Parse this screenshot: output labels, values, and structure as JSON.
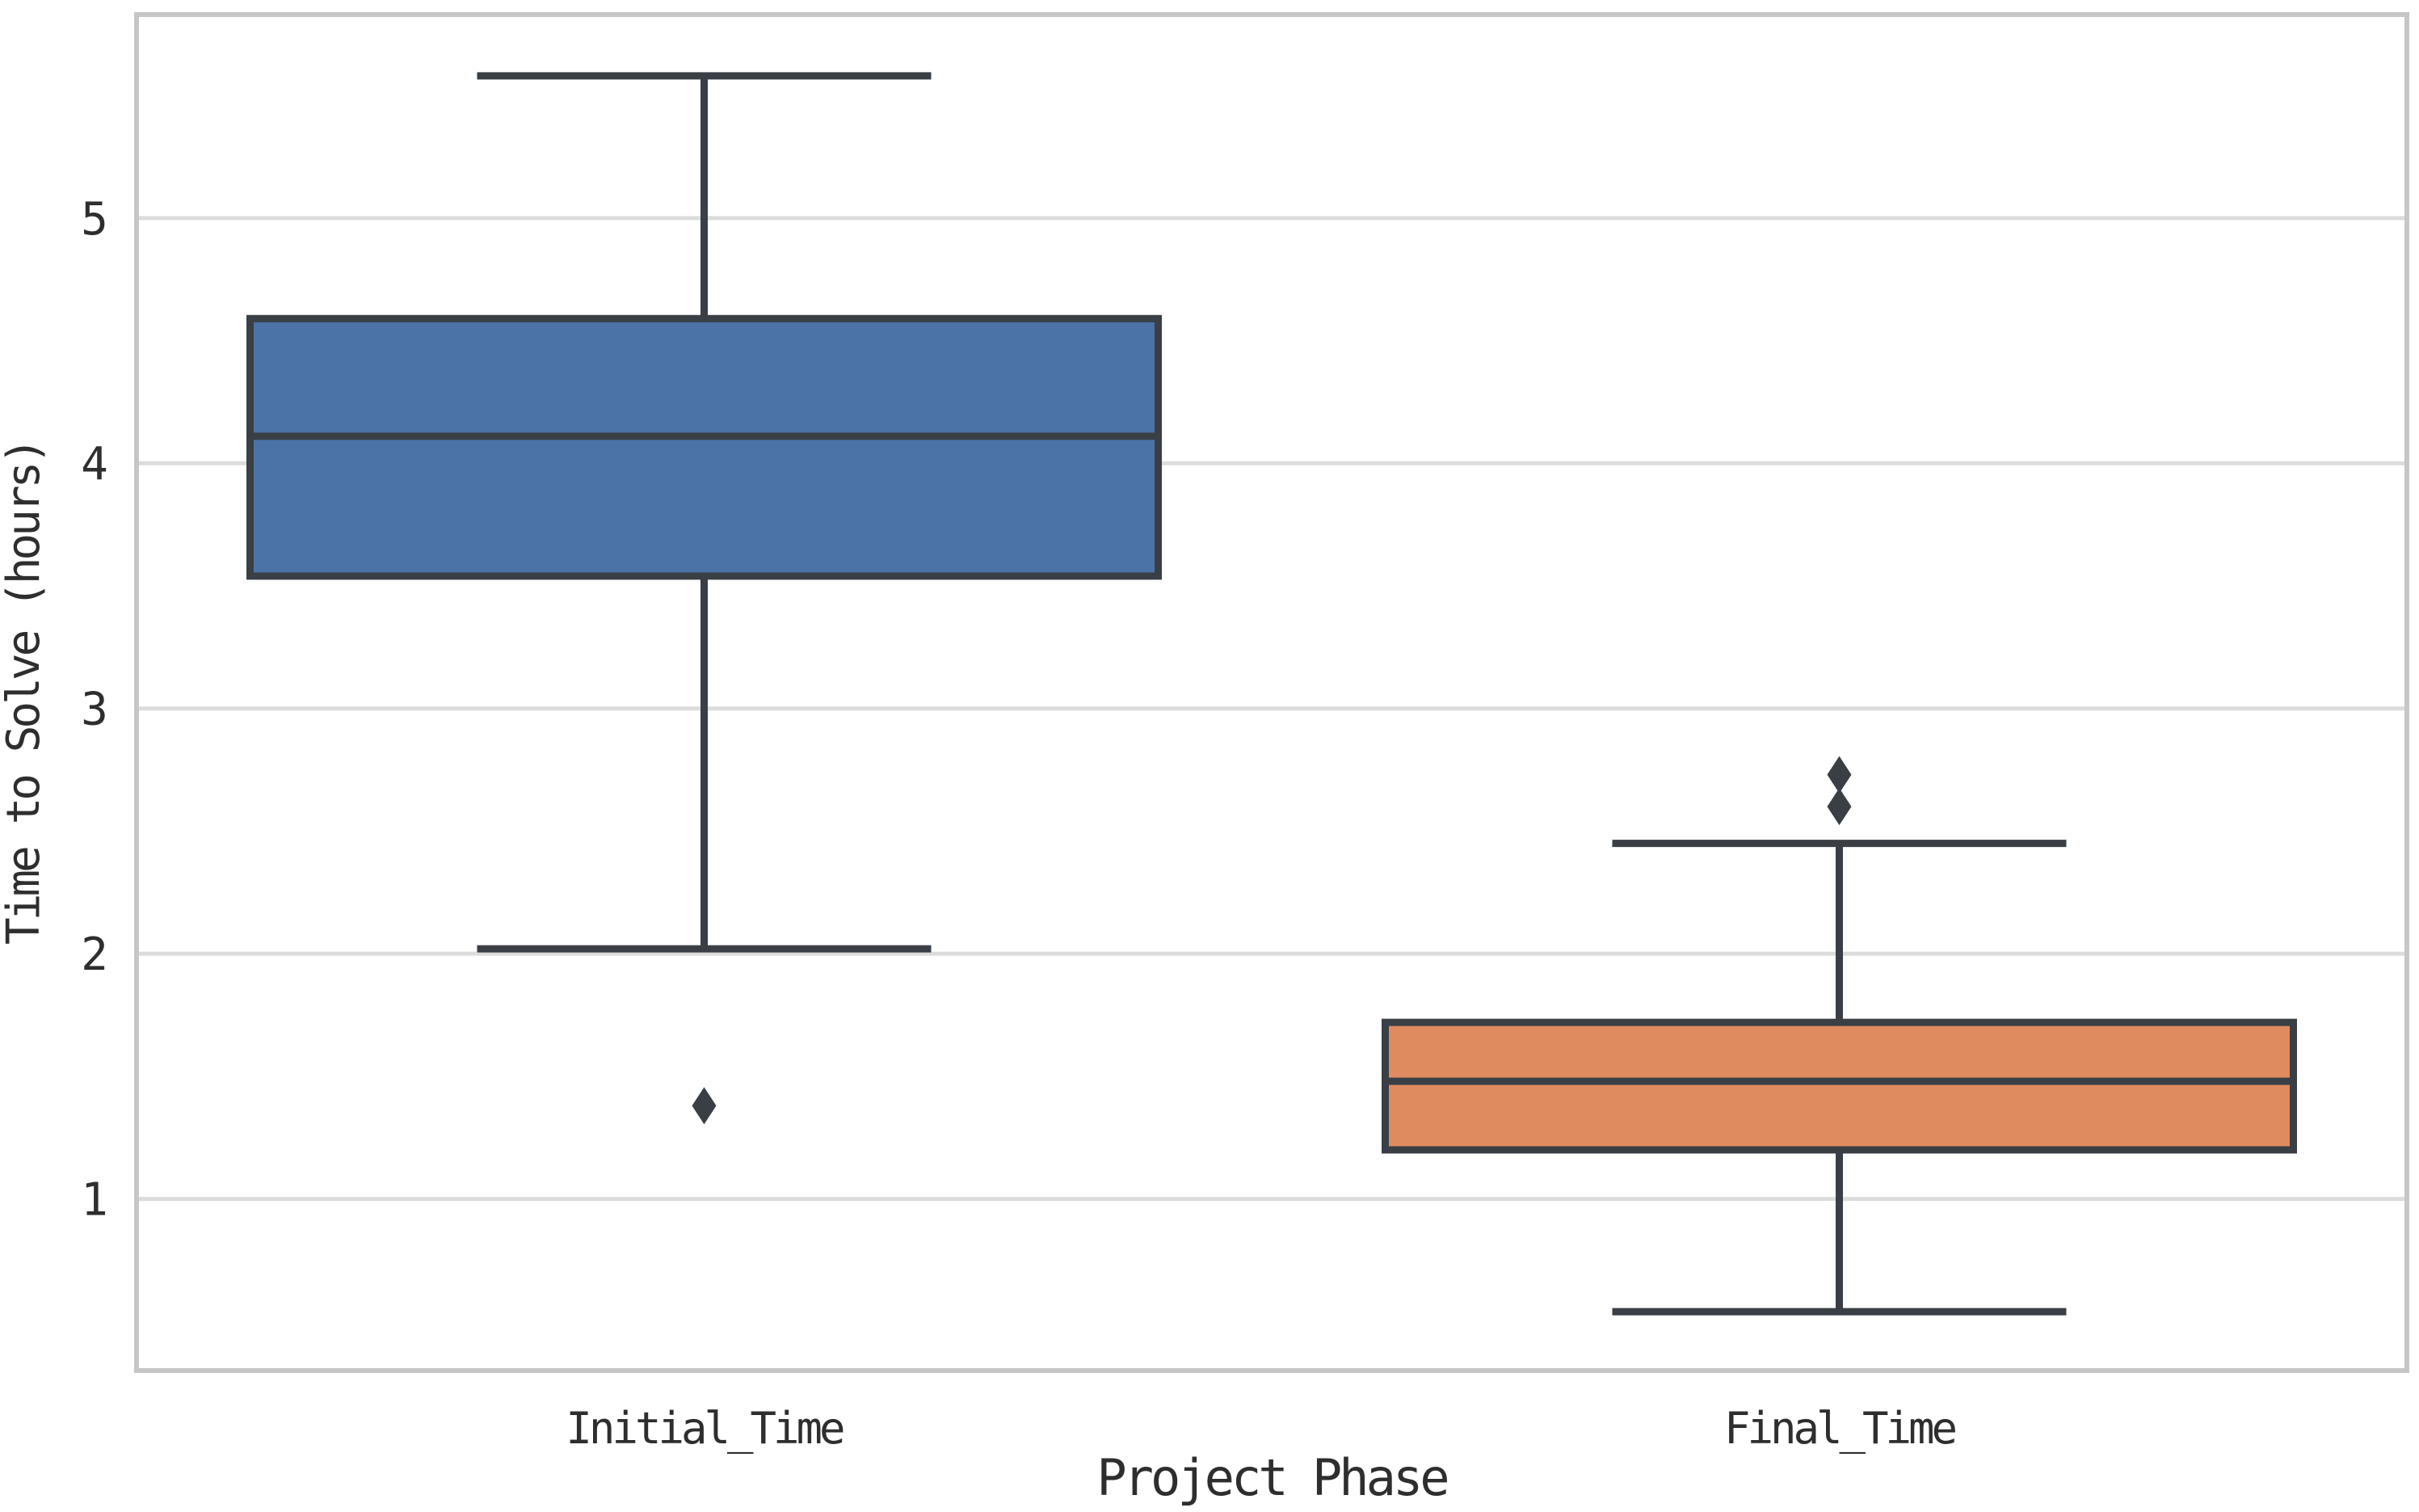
{
  "chart_data": {
    "type": "boxplot",
    "title": "",
    "xlabel": "Project Phase",
    "ylabel": "Time to Solve (hours)",
    "categories": [
      "Initial_Time",
      "Final_Time"
    ],
    "ytick_labels": [
      "1",
      "2",
      "3",
      "4",
      "5"
    ],
    "yticks": [
      1,
      2,
      3,
      4,
      5
    ],
    "ylim": [
      0.3,
      5.83
    ],
    "grid": "horizontal",
    "legend": "none",
    "series": [
      {
        "name": "Initial_Time",
        "box_color": "#4b73a8",
        "whisker_low": 2.02,
        "q1": 3.54,
        "median": 4.11,
        "q3": 4.59,
        "whisker_high": 5.58,
        "outliers": [
          1.38
        ]
      },
      {
        "name": "Final_Time",
        "box_color": "#e08b5f",
        "whisker_low": 0.54,
        "q1": 1.2,
        "median": 1.48,
        "q3": 1.72,
        "whisker_high": 2.45,
        "outliers": [
          2.6,
          2.73
        ]
      }
    ],
    "colors": {
      "box_edge": "#3a3f46",
      "gridline": "#dcdcdc",
      "spine": "#c6c6c6",
      "text": "#2e2e2e",
      "background": "#ffffff"
    }
  }
}
